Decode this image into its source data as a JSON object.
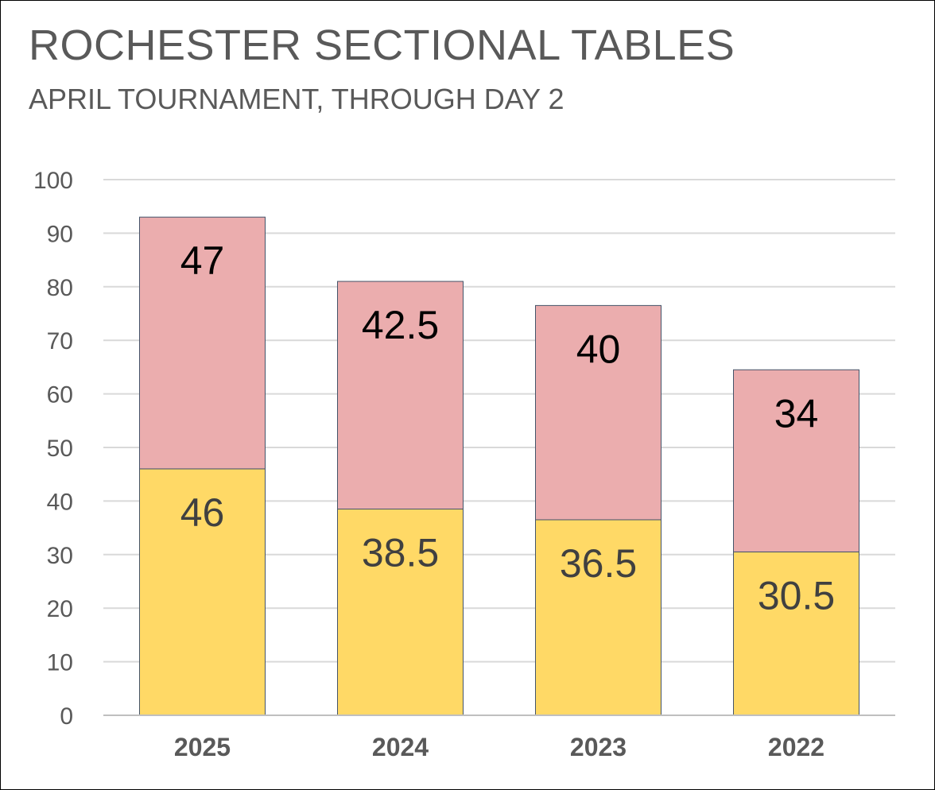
{
  "chart_data": {
    "type": "bar",
    "stacked": true,
    "title": "ROCHESTER SECTIONAL TABLES",
    "subtitle": "APRIL TOURNAMENT, THROUGH DAY 2",
    "categories": [
      "2025",
      "2024",
      "2023",
      "2022"
    ],
    "series": [
      {
        "values": [
          46,
          38.5,
          36.5,
          30.5
        ],
        "color": "#FFD966",
        "label_color": "#404040"
      },
      {
        "values": [
          47,
          42.5,
          40,
          34
        ],
        "color": "#EBADAE",
        "label_color": "#000000"
      }
    ],
    "ylim": [
      0,
      100
    ],
    "yticks": [
      "0",
      "10",
      "20",
      "30",
      "40",
      "50",
      "60",
      "70",
      "80",
      "90",
      "100"
    ],
    "grid": true,
    "legend": "none",
    "xlabel": "",
    "ylabel": ""
  }
}
